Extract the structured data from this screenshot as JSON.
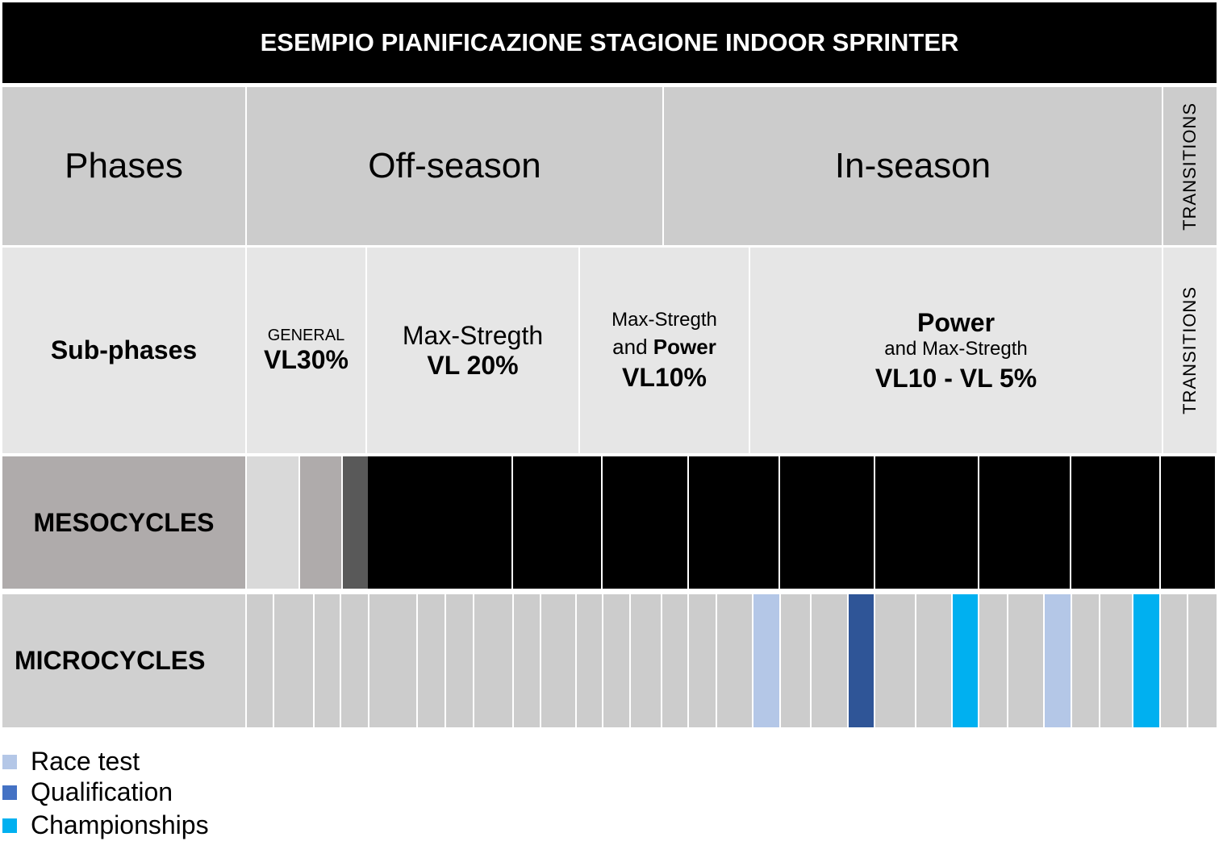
{
  "header": {
    "title": "ESEMPIO PIANIFICAZIONE STAGIONE INDOOR SPRINTER"
  },
  "phases": {
    "label": "Phases",
    "items": [
      "Off-season",
      "In-season"
    ],
    "transitions": "TRANSITIONS"
  },
  "subphases": {
    "label": "Sub-phases",
    "items": [
      [
        "GENERAL",
        "VL30%"
      ],
      [
        "Max-Stregth",
        "VL 20%"
      ],
      [
        "Max-Stregth",
        "and",
        "Power",
        "VL10%"
      ],
      [
        "Power",
        "and Max-Stregth",
        "VL10 - VL 5%"
      ]
    ],
    "transitions": "TRANSITIONS"
  },
  "mesocycles": {
    "label": "MESOCYCLES"
  },
  "microcycles": {
    "label": "MICROCYCLES"
  },
  "legend": [
    "Race test",
    "Qualification",
    "Championships"
  ]
}
